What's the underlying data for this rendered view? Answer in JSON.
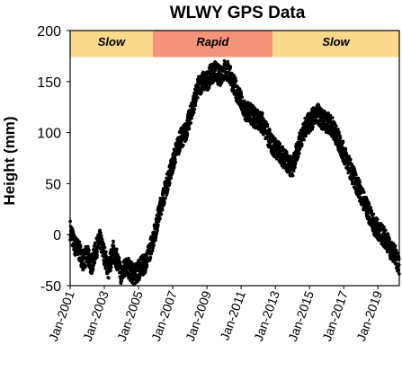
{
  "chart_data": {
    "type": "scatter",
    "title": "WLWY GPS Data",
    "xlabel": "",
    "ylabel": "Height (mm)",
    "xlim": [
      "2001-01",
      "2020-04"
    ],
    "ylim": [
      -50,
      200
    ],
    "y_ticks": [
      "200",
      "150",
      "100",
      "50",
      "0",
      "-50"
    ],
    "x_ticks": [
      "Jan-2001",
      "Jan-2003",
      "Jan-2005",
      "Jan-2007",
      "Jan-2009",
      "Jan-2011",
      "Jan-2013",
      "Jan-2015",
      "Jan-2017",
      "Jan-2019"
    ],
    "grid": false,
    "legend": "none",
    "marker_color": "#000000",
    "bands": [
      {
        "label": "Slow",
        "start": "2001-01",
        "end": "2005-11",
        "color": "#f9d98c"
      },
      {
        "label": "Rapid",
        "start": "2005-11",
        "end": "2012-11",
        "color": "#f4927a"
      },
      {
        "label": "Slow",
        "start": "2012-11",
        "end": "2020-04",
        "color": "#f9d98c"
      }
    ],
    "band_y_range": [
      174,
      200
    ],
    "series": [
      {
        "x": [
          "2001-01",
          "2001-04",
          "2001-07",
          "2001-10",
          "2002-01",
          "2002-04",
          "2002-07",
          "2002-10",
          "2003-01",
          "2003-04",
          "2003-07",
          "2003-10",
          "2004-01",
          "2004-04",
          "2004-07",
          "2004-10",
          "2005-01",
          "2005-04",
          "2005-07",
          "2005-10",
          "2006-01",
          "2006-04",
          "2006-07",
          "2006-10",
          "2007-01",
          "2007-04",
          "2007-07",
          "2007-10",
          "2008-01",
          "2008-04",
          "2008-07",
          "2008-10",
          "2009-01",
          "2009-04",
          "2009-07",
          "2009-10",
          "2010-01",
          "2010-04",
          "2010-07",
          "2010-10",
          "2011-01",
          "2011-04",
          "2011-07",
          "2011-10",
          "2012-01",
          "2012-04",
          "2012-07",
          "2012-10",
          "2013-01",
          "2013-04",
          "2013-07",
          "2013-10",
          "2014-01",
          "2014-04",
          "2014-07",
          "2014-10",
          "2015-01",
          "2015-04",
          "2015-07",
          "2015-10",
          "2016-01",
          "2016-04",
          "2016-07",
          "2016-10",
          "2017-01",
          "2017-04",
          "2017-07",
          "2017-10",
          "2018-01",
          "2018-04",
          "2018-07",
          "2018-10",
          "2019-01",
          "2019-04",
          "2019-07",
          "2019-10",
          "2020-01",
          "2020-04"
        ],
        "y": [
          5,
          -10,
          -15,
          -25,
          -20,
          -30,
          -15,
          -5,
          -20,
          -35,
          -15,
          -25,
          -40,
          -30,
          -35,
          -40,
          -35,
          -30,
          -25,
          -10,
          5,
          25,
          40,
          55,
          70,
          85,
          95,
          100,
          115,
          130,
          145,
          150,
          150,
          158,
          160,
          155,
          162,
          160,
          150,
          140,
          130,
          120,
          120,
          115,
          112,
          110,
          100,
          90,
          85,
          80,
          75,
          70,
          65,
          80,
          95,
          105,
          110,
          115,
          118,
          112,
          110,
          108,
          100,
          90,
          80,
          70,
          60,
          50,
          40,
          30,
          20,
          10,
          5,
          0,
          -5,
          -15,
          -20,
          -30
        ]
      }
    ]
  }
}
